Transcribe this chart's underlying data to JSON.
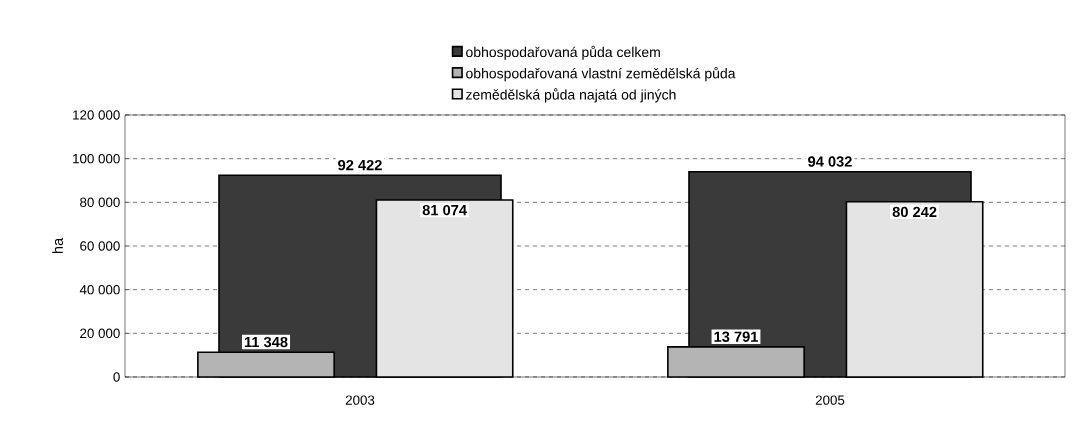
{
  "chart_data": {
    "type": "bar",
    "ylabel": "ha",
    "categories": [
      "2003",
      "2005"
    ],
    "series": [
      {
        "name": "obhospodařovaná půda celkem",
        "color": "#3a3a3a",
        "values": [
          92422,
          94032
        ],
        "value_labels": [
          "92 422",
          "94 032"
        ]
      },
      {
        "name": "obhospodařovaná vlastní zemědělská půda",
        "color": "#b4b4b4",
        "values": [
          11348,
          13791
        ],
        "value_labels": [
          "11 348",
          "13 791"
        ]
      },
      {
        "name": "zemědělská půda najatá od jiných",
        "color": "#e4e4e4",
        "values": [
          81074,
          80242
        ],
        "value_labels": [
          "81 074",
          "80 242"
        ]
      }
    ],
    "ylim": [
      0,
      120000
    ],
    "yticks": [
      {
        "value": 0,
        "label": "0"
      },
      {
        "value": 20000,
        "label": "20 000"
      },
      {
        "value": 40000,
        "label": "40 000"
      },
      {
        "value": 60000,
        "label": "60 000"
      },
      {
        "value": 80000,
        "label": "80 000"
      },
      {
        "value": 100000,
        "label": "100 000"
      },
      {
        "value": 120000,
        "label": "120 000"
      }
    ],
    "grid": "y",
    "legend": "top"
  }
}
